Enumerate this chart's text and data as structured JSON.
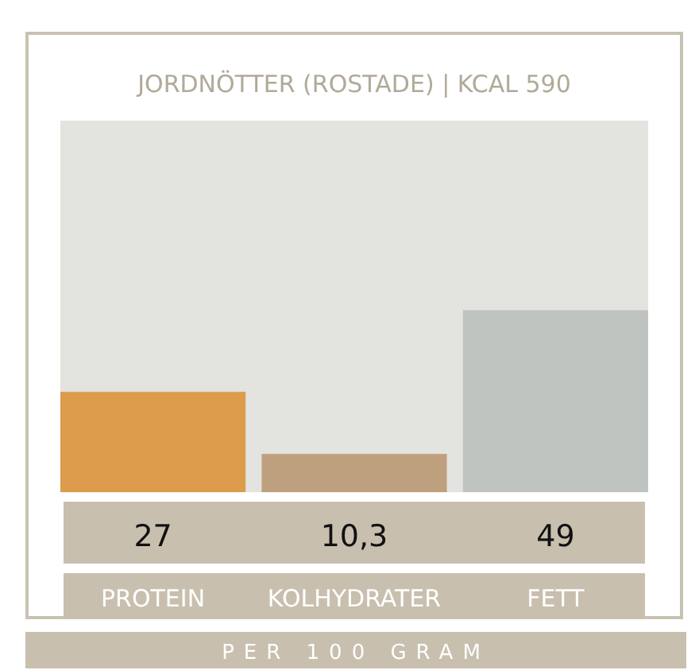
{
  "chart_data": {
    "type": "bar",
    "title": "JORDNÖTTER (ROSTADE) | KCAL 590",
    "categories": [
      "PROTEIN",
      "KOLHYDRATER",
      "FETT"
    ],
    "values": [
      27,
      10.3,
      49
    ],
    "colors": [
      "#dc9c4c",
      "#bfa07e",
      "#c0c4c0"
    ],
    "value_labels": [
      "27",
      "10,3",
      "49"
    ],
    "ylim": [
      0,
      100
    ],
    "annotations": [
      "PER 100 GRAM"
    ]
  }
}
